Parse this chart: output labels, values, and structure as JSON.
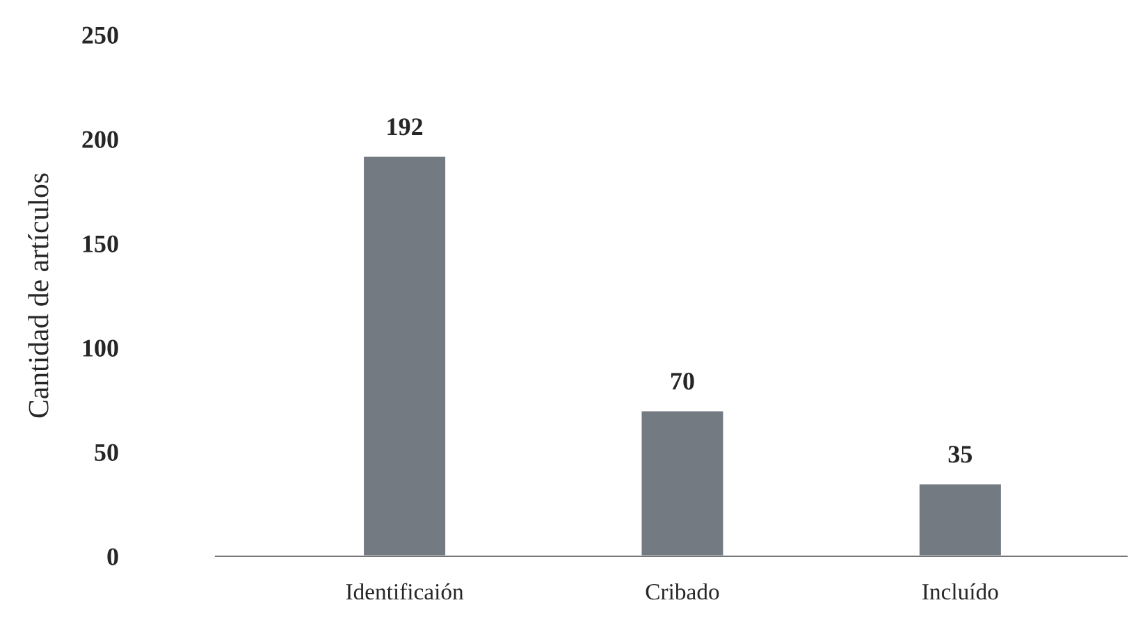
{
  "chart_data": {
    "type": "bar",
    "ylabel": "Cantidad de artículos",
    "categories": [
      "Identificaión",
      "Cribado",
      "Incluído"
    ],
    "values": [
      192,
      70,
      35
    ],
    "color": "#737a82",
    "ylim": [
      0,
      250
    ],
    "yticks": [
      0,
      50,
      100,
      150,
      200,
      250
    ],
    "data_labels": true,
    "grid": false,
    "legend": false
  }
}
